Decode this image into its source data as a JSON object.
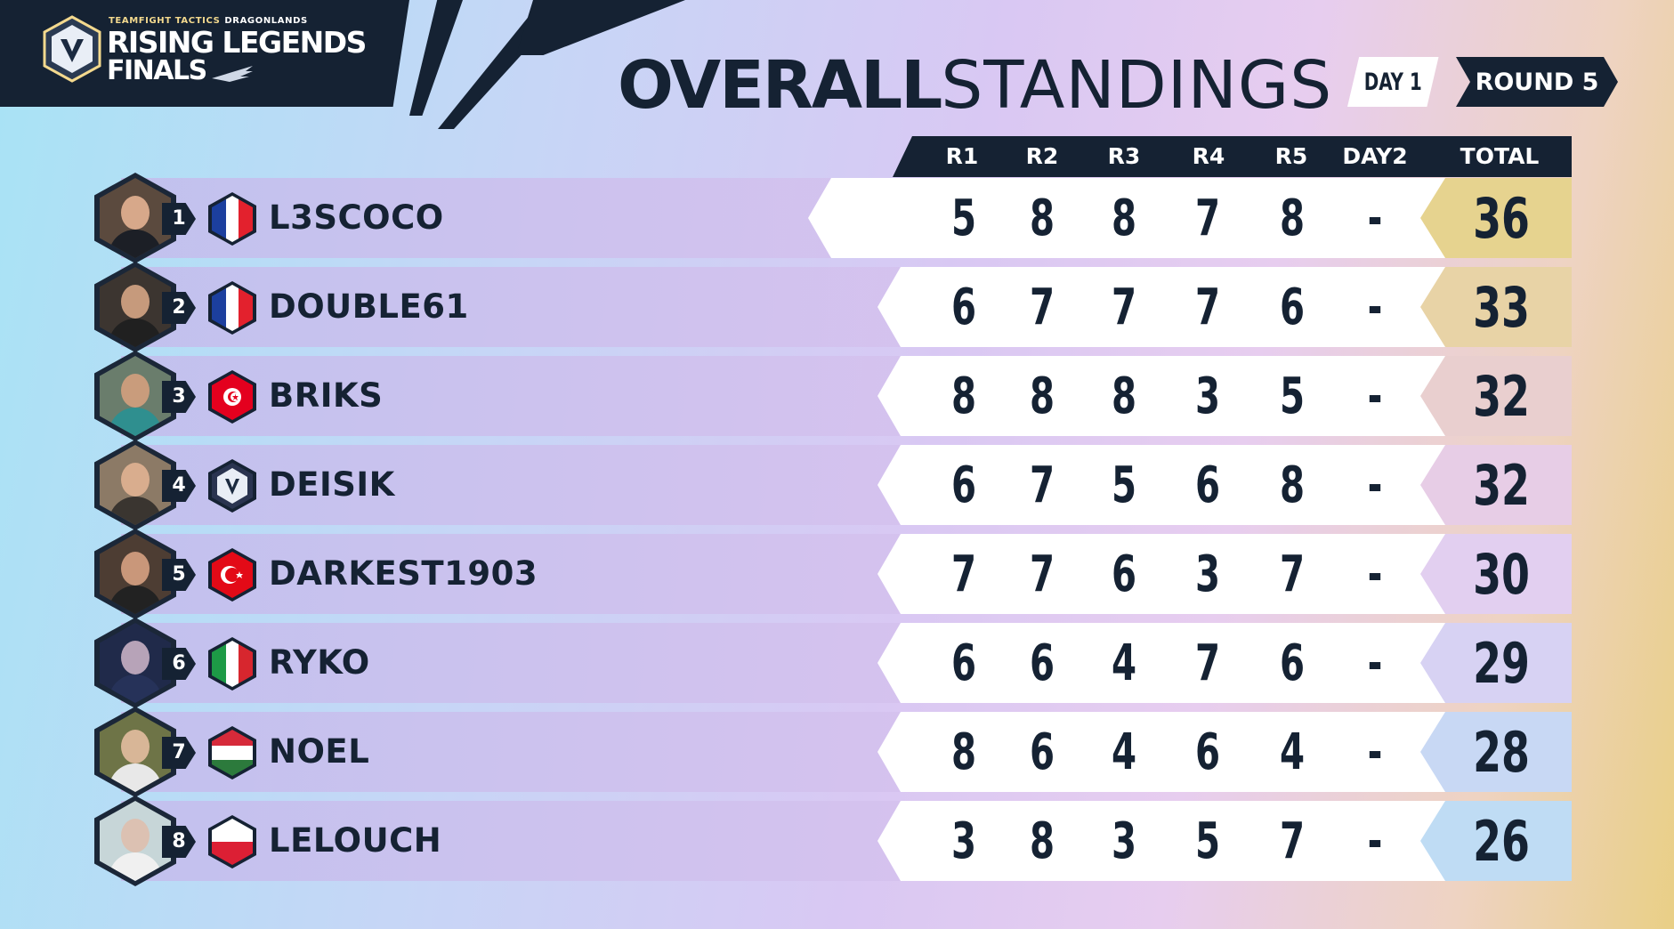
{
  "brand": {
    "small_line_1": "TEAMFIGHT TACTICS",
    "small_line_2": "DRAGONLANDS",
    "line_1": "RISING LEGENDS",
    "line_2": "FINALS"
  },
  "title": {
    "bold": "OVERALL",
    "light": "STANDINGS"
  },
  "badges": {
    "day": "DAY 1",
    "round": "ROUND 5"
  },
  "columns": [
    "R1",
    "R2",
    "R3",
    "R4",
    "R5",
    "DAY2",
    "TOTAL"
  ],
  "colors": {
    "navy": "#152233",
    "total_gold": "#e6d38f",
    "total_blue": "#bfdcf4"
  },
  "players": [
    {
      "rank": "1",
      "name": "L3SCOCO",
      "flag": "france-flag",
      "scores": [
        "5",
        "8",
        "8",
        "7",
        "8",
        "-"
      ],
      "total": "36",
      "total_color": "#e6d38f",
      "avatar_bg": "#5b4a3e",
      "skin": "#d7a88a",
      "shirt": "#1c1f26"
    },
    {
      "rank": "2",
      "name": "DOUBLE61",
      "flag": "france-flag",
      "scores": [
        "6",
        "7",
        "7",
        "7",
        "6",
        "-"
      ],
      "total": "33",
      "total_color": "#e8d3a6",
      "avatar_bg": "#3c3530",
      "skin": "#c69a7c",
      "shirt": "#202020"
    },
    {
      "rank": "3",
      "name": "BRIKS",
      "flag": "tunisia-flag",
      "scores": [
        "8",
        "8",
        "8",
        "3",
        "5",
        "-"
      ],
      "total": "32",
      "total_color": "#e9cfcf",
      "avatar_bg": "#6a7d6c",
      "skin": "#c99c7c",
      "shirt": "#2f8f8f"
    },
    {
      "rank": "4",
      "name": "DEISIK",
      "flag": "tft-logo-flag",
      "scores": [
        "6",
        "7",
        "5",
        "6",
        "8",
        "-"
      ],
      "total": "32",
      "total_color": "#e7cde6",
      "avatar_bg": "#8c7a66",
      "skin": "#d9ad8e",
      "shirt": "#3a3530"
    },
    {
      "rank": "5",
      "name": "DARKEST1903",
      "flag": "turkey-flag",
      "scores": [
        "7",
        "7",
        "6",
        "3",
        "7",
        "-"
      ],
      "total": "30",
      "total_color": "#e2cff0",
      "avatar_bg": "#4d3d33",
      "skin": "#c9977a",
      "shirt": "#222222"
    },
    {
      "rank": "6",
      "name": "RYKO",
      "flag": "italy-flag",
      "scores": [
        "6",
        "6",
        "4",
        "7",
        "6",
        "-"
      ],
      "total": "29",
      "total_color": "#d7d2f3",
      "avatar_bg": "#202a4a",
      "skin": "#b7a3b8",
      "shirt": "#263259"
    },
    {
      "rank": "7",
      "name": "NOEL",
      "flag": "hungary-flag",
      "scores": [
        "8",
        "6",
        "4",
        "6",
        "4",
        "-"
      ],
      "total": "28",
      "total_color": "#c8d8f4",
      "avatar_bg": "#6e7447",
      "skin": "#d8b697",
      "shirt": "#e8e8e8"
    },
    {
      "rank": "8",
      "name": "LELOUCH",
      "flag": "poland-flag",
      "scores": [
        "3",
        "8",
        "3",
        "5",
        "7",
        "-"
      ],
      "total": "26",
      "total_color": "#bfdcf4",
      "avatar_bg": "#c7d6d8",
      "skin": "#dcc1b2",
      "shirt": "#f0f0f0"
    }
  ]
}
